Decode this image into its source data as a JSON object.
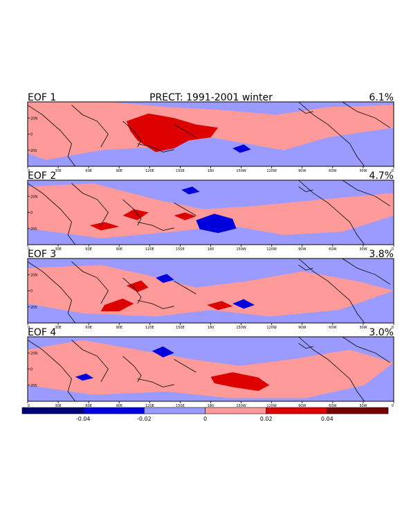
{
  "figure": {
    "title": "PRECT: 1991-2001 winter",
    "colors": {
      "neg_strong": "#00007a",
      "neg_mid": "#0000dd",
      "neg_weak": "#9a9aff",
      "pos_weak": "#ff9a9a",
      "pos_mid": "#dd0000",
      "pos_strong": "#7a0000",
      "coast": "#000000"
    }
  },
  "panels": [
    {
      "label": "EOF 1",
      "variance": "6.1%"
    },
    {
      "label": "EOF 2",
      "variance": "4.7%"
    },
    {
      "label": "EOF 3",
      "variance": "3.8%"
    },
    {
      "label": "EOF 4",
      "variance": "3.0%"
    }
  ],
  "x_ticks": [
    "0",
    "30E",
    "60E",
    "90E",
    "120E",
    "150E",
    "180",
    "150W",
    "120W",
    "90W",
    "60W",
    "30W",
    "0"
  ],
  "y_ticks": [
    "20N",
    "0",
    "20S"
  ],
  "colorbar": {
    "labels": [
      "-0.04",
      "-0.02",
      "0",
      "0.02",
      "0.04"
    ]
  }
}
